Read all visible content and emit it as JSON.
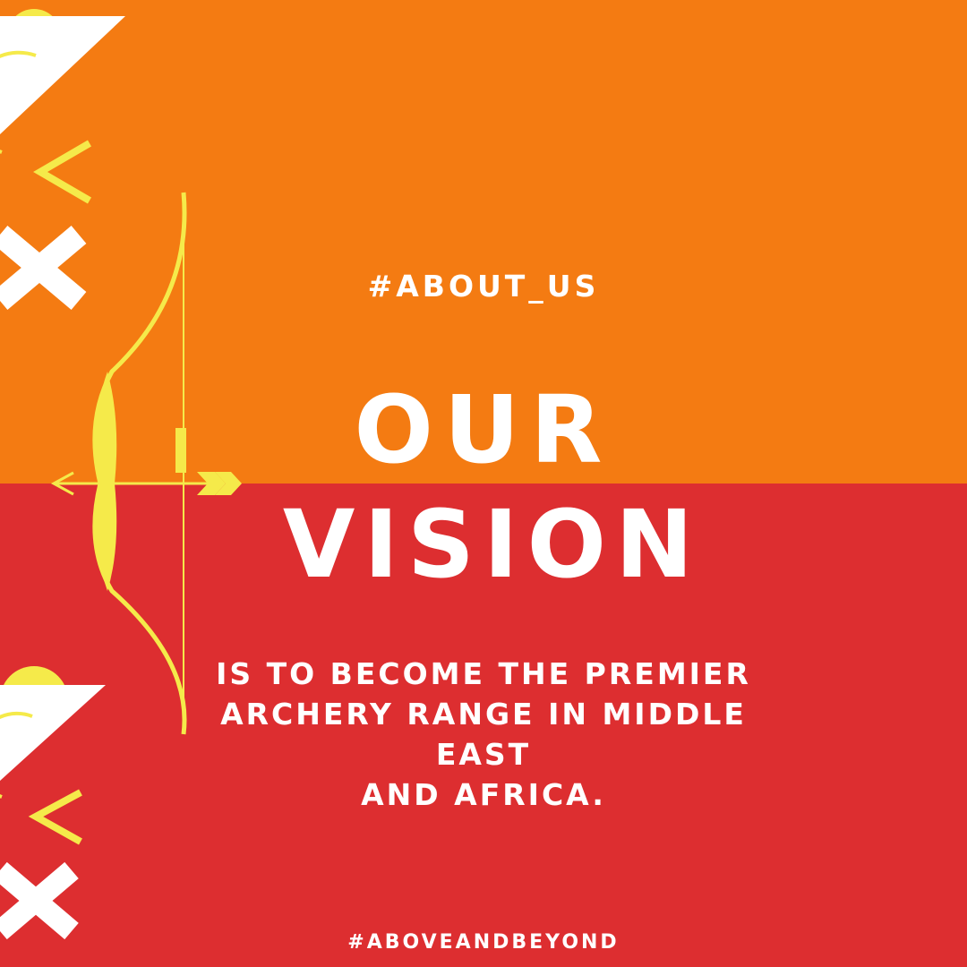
{
  "hashtag_top": "#ABOUT_US",
  "title": {
    "line1": "OUR",
    "line2": "VISION"
  },
  "body": {
    "line1": "IS TO BECOME THE PREMIER",
    "line2": "ARCHERY RANGE IN MIDDLE EAST",
    "line3": "AND AFRICA."
  },
  "hashtag_bottom": "#ABOVEANDBEYOND",
  "colors": {
    "top_background": "#f47b12",
    "bottom_background": "#dd2e30",
    "accent_yellow": "#f5ea4a",
    "text": "#ffffff"
  },
  "icons": [
    "play-triangle-icon",
    "semicircle-icon",
    "chevron-left-icon",
    "x-cross-icon",
    "bow-and-arrow-icon"
  ]
}
